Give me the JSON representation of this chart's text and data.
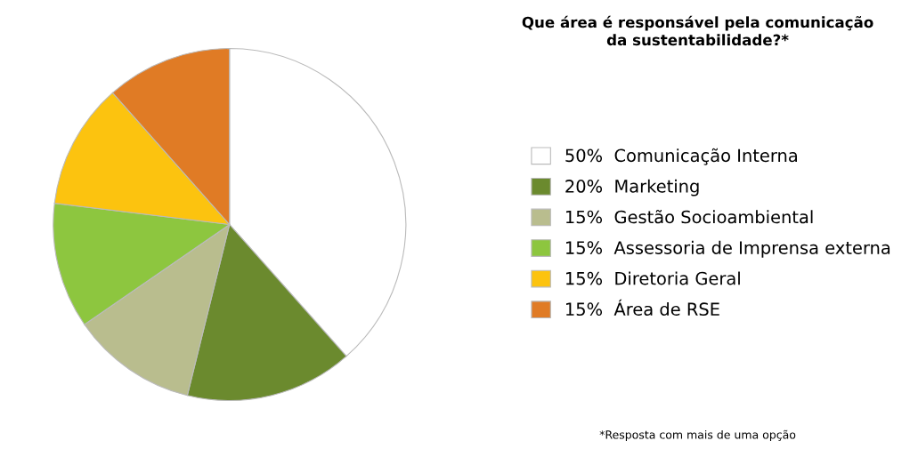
{
  "chart_data": {
    "type": "pie",
    "title": "Que área é responsável pela comunicação\nda sustentabilidade?*",
    "categories": [
      "Comunicação Interna",
      "Marketing",
      "Gestão Socioambiental",
      "Assessoria de Imprensa externa",
      "Diretoria Geral",
      "Área de RSE"
    ],
    "values": [
      50,
      20,
      15,
      15,
      15,
      15
    ],
    "value_labels": [
      "50%",
      "20%",
      "15%",
      "15%",
      "15%",
      "15%"
    ],
    "colors": [
      "#ffffff",
      "#6b8a2e",
      "#b9bd8e",
      "#8dc63f",
      "#fcc30f",
      "#e07b25"
    ],
    "legend": "right",
    "annotations": [
      "*Resposta com mais de uma opção"
    ]
  }
}
